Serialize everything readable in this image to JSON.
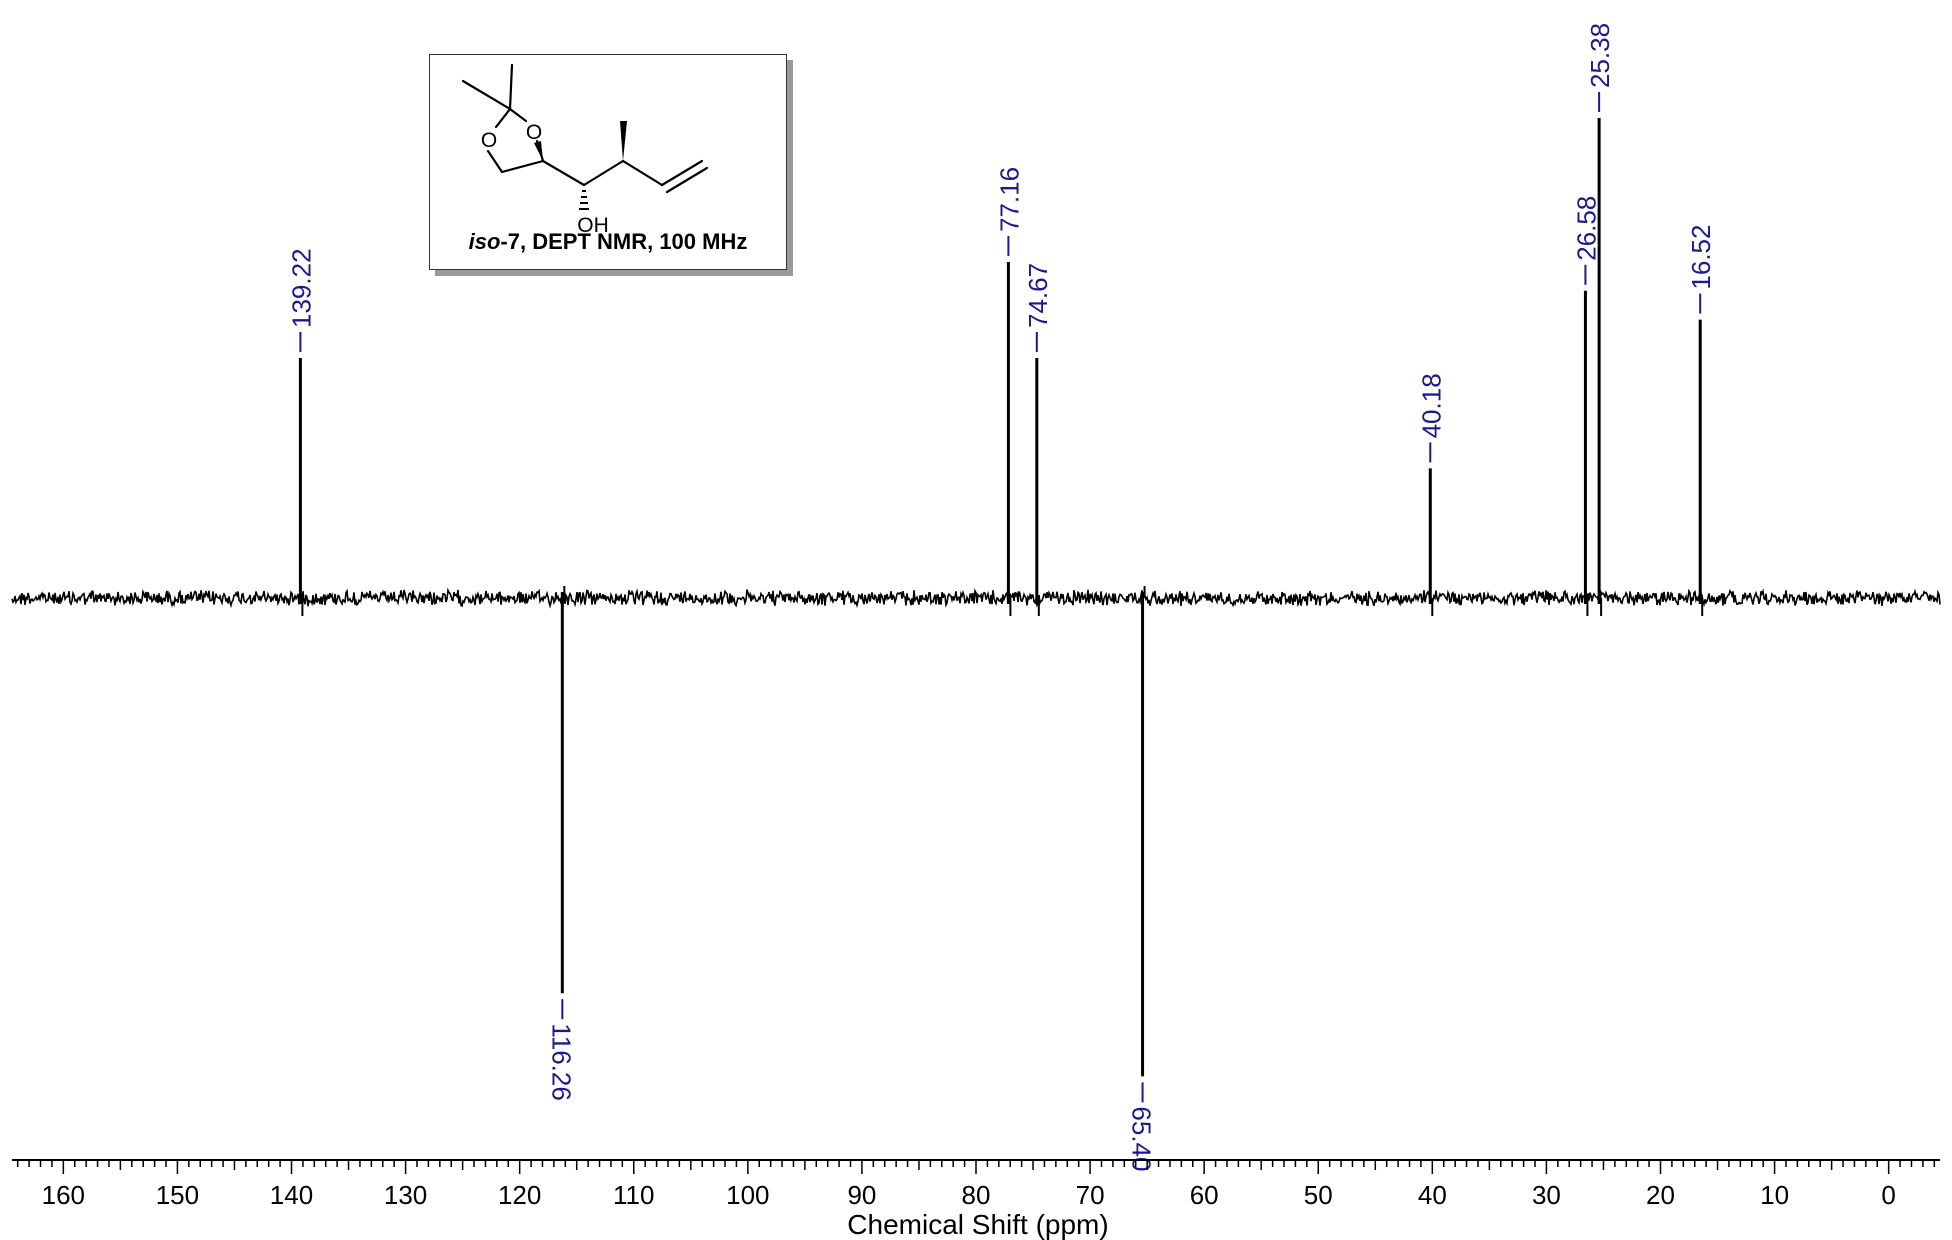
{
  "chart_data": {
    "type": "line",
    "title": "",
    "xlabel": "Chemical Shift (ppm)",
    "ylabel": "",
    "xlim": [
      164.5,
      -4.5
    ],
    "x_reversed": true,
    "x_ticks": [
      160,
      150,
      140,
      130,
      120,
      110,
      100,
      90,
      80,
      70,
      60,
      50,
      40,
      30,
      20,
      10,
      0
    ],
    "grid": false,
    "legend": "none",
    "series": [
      {
        "peaks": [
          {
            "shift": 139.22,
            "label": "139.22",
            "intensity": 0.5,
            "phase": "positive"
          },
          {
            "shift": 116.26,
            "label": "116.26",
            "intensity": -0.76,
            "phase": "negative"
          },
          {
            "shift": 77.16,
            "label": "77.16",
            "intensity": 0.7,
            "phase": "positive"
          },
          {
            "shift": 74.67,
            "label": "74.67",
            "intensity": 0.5,
            "phase": "positive"
          },
          {
            "shift": 65.4,
            "label": "65.40",
            "intensity": -0.92,
            "phase": "negative"
          },
          {
            "shift": 40.18,
            "label": "40.18",
            "intensity": 0.27,
            "phase": "positive"
          },
          {
            "shift": 26.58,
            "label": "26.58",
            "intensity": 0.64,
            "phase": "positive"
          },
          {
            "shift": 25.38,
            "label": "25.38",
            "intensity": 1.0,
            "phase": "positive"
          },
          {
            "shift": 16.52,
            "label": "16.52",
            "intensity": 0.58,
            "phase": "positive"
          }
        ]
      }
    ],
    "colors": {
      "trace": "#000000",
      "peak_label": "#1a1a8c",
      "axis": "#000000"
    }
  },
  "inset": {
    "caption_prefix": "iso",
    "caption_rest": "-7, DEPT NMR, 100 MHz",
    "atom_labels": {
      "o1": "O",
      "o2": "O",
      "oh": "OH"
    }
  }
}
